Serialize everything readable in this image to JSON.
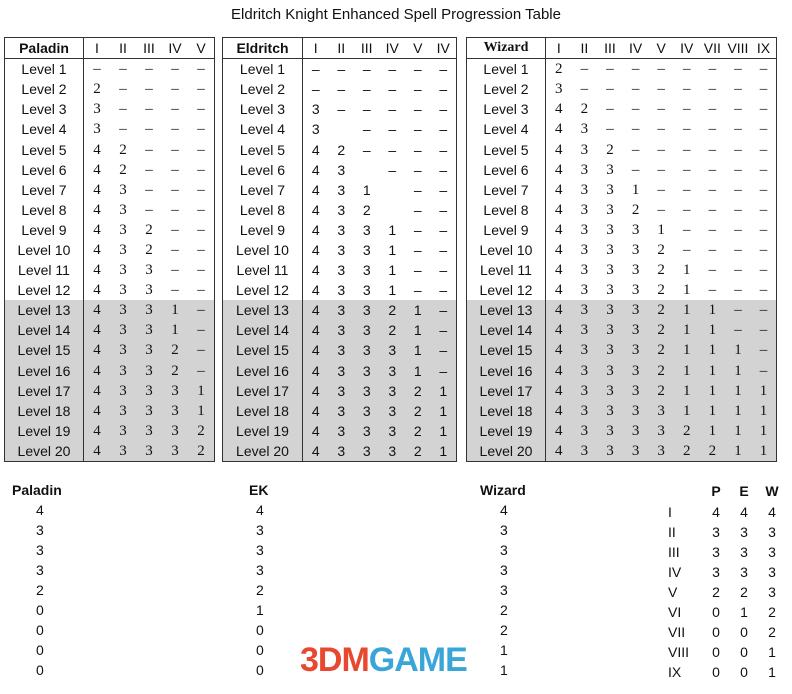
{
  "title": "Eldritch Knight Enhanced Spell Progression Table",
  "tables": [
    {
      "id": "paladin",
      "header": "Paladin",
      "serif": true,
      "columns": [
        "I",
        "II",
        "III",
        "IV",
        "V"
      ],
      "rows": [
        [
          "Level 1",
          "–",
          "–",
          "–",
          "–",
          "–"
        ],
        [
          "Level 2",
          "2",
          "–",
          "–",
          "–",
          "–"
        ],
        [
          "Level 3",
          "3",
          "–",
          "–",
          "–",
          "–"
        ],
        [
          "Level 4",
          "3",
          "–",
          "–",
          "–",
          "–"
        ],
        [
          "Level 5",
          "4",
          "2",
          "–",
          "–",
          "–"
        ],
        [
          "Level 6",
          "4",
          "2",
          "–",
          "–",
          "–"
        ],
        [
          "Level 7",
          "4",
          "3",
          "–",
          "–",
          "–"
        ],
        [
          "Level 8",
          "4",
          "3",
          "–",
          "–",
          "–"
        ],
        [
          "Level 9",
          "4",
          "3",
          "2",
          "–",
          "–"
        ],
        [
          "Level 10",
          "4",
          "3",
          "2",
          "–",
          "–"
        ],
        [
          "Level 11",
          "4",
          "3",
          "3",
          "–",
          "–"
        ],
        [
          "Level 12",
          "4",
          "3",
          "3",
          "–",
          "–"
        ],
        [
          "Level 13",
          "4",
          "3",
          "3",
          "1",
          "–"
        ],
        [
          "Level 14",
          "4",
          "3",
          "3",
          "1",
          "–"
        ],
        [
          "Level 15",
          "4",
          "3",
          "3",
          "2",
          "–"
        ],
        [
          "Level 16",
          "4",
          "3",
          "3",
          "2",
          "–"
        ],
        [
          "Level 17",
          "4",
          "3",
          "3",
          "3",
          "1"
        ],
        [
          "Level 18",
          "4",
          "3",
          "3",
          "3",
          "1"
        ],
        [
          "Level 19",
          "4",
          "3",
          "3",
          "3",
          "2"
        ],
        [
          "Level 20",
          "4",
          "3",
          "3",
          "3",
          "2"
        ]
      ]
    },
    {
      "id": "eldritch",
      "header": "Eldritch",
      "serif": false,
      "columns": [
        "I",
        "II",
        "III",
        "IV",
        "V",
        "IV"
      ],
      "rows": [
        [
          "Level 1",
          "–",
          "–",
          "–",
          "–",
          "–",
          "–"
        ],
        [
          "Level 2",
          "–",
          "–",
          "–",
          "–",
          "–",
          "–"
        ],
        [
          "Level 3",
          "3",
          "–",
          "–",
          "–",
          "–",
          "–"
        ],
        [
          "Level 4",
          "3",
          "",
          "–",
          "–",
          "–",
          "–"
        ],
        [
          "Level 5",
          "4",
          "2",
          "–",
          "–",
          "–",
          "–"
        ],
        [
          "Level 6",
          "4",
          "3",
          "",
          "–",
          "–",
          "–"
        ],
        [
          "Level 7",
          "4",
          "3",
          "1",
          "",
          "–",
          "–"
        ],
        [
          "Level 8",
          "4",
          "3",
          "2",
          "",
          "–",
          "–"
        ],
        [
          "Level 9",
          "4",
          "3",
          "3",
          "1",
          "–",
          "–"
        ],
        [
          "Level 10",
          "4",
          "3",
          "3",
          "1",
          "–",
          "–"
        ],
        [
          "Level 11",
          "4",
          "3",
          "3",
          "1",
          "–",
          "–"
        ],
        [
          "Level 12",
          "4",
          "3",
          "3",
          "1",
          "–",
          "–"
        ],
        [
          "Level 13",
          "4",
          "3",
          "3",
          "2",
          "1",
          "–"
        ],
        [
          "Level 14",
          "4",
          "3",
          "3",
          "2",
          "1",
          "–"
        ],
        [
          "Level 15",
          "4",
          "3",
          "3",
          "3",
          "1",
          "–"
        ],
        [
          "Level 16",
          "4",
          "3",
          "3",
          "3",
          "1",
          "–"
        ],
        [
          "Level 17",
          "4",
          "3",
          "3",
          "3",
          "2",
          "1"
        ],
        [
          "Level 18",
          "4",
          "3",
          "3",
          "3",
          "2",
          "1"
        ],
        [
          "Level 19",
          "4",
          "3",
          "3",
          "3",
          "2",
          "1"
        ],
        [
          "Level 20",
          "4",
          "3",
          "3",
          "3",
          "2",
          "1"
        ]
      ]
    },
    {
      "id": "wizard",
      "header": "Wizard",
      "serif": true,
      "columns": [
        "I",
        "II",
        "III",
        "IV",
        "V",
        "IV",
        "VII",
        "VIII",
        "IX"
      ],
      "rows": [
        [
          "Level 1",
          "2",
          "–",
          "–",
          "–",
          "–",
          "–",
          "–",
          "–",
          "–"
        ],
        [
          "Level 2",
          "3",
          "–",
          "–",
          "–",
          "–",
          "–",
          "–",
          "–",
          "–"
        ],
        [
          "Level 3",
          "4",
          "2",
          "–",
          "–",
          "–",
          "–",
          "–",
          "–",
          "–"
        ],
        [
          "Level 4",
          "4",
          "3",
          "–",
          "–",
          "–",
          "–",
          "–",
          "–",
          "–"
        ],
        [
          "Level 5",
          "4",
          "3",
          "2",
          "–",
          "–",
          "–",
          "–",
          "–",
          "–"
        ],
        [
          "Level 6",
          "4",
          "3",
          "3",
          "–",
          "–",
          "–",
          "–",
          "–",
          "–"
        ],
        [
          "Level 7",
          "4",
          "3",
          "3",
          "1",
          "–",
          "–",
          "–",
          "–",
          "–"
        ],
        [
          "Level 8",
          "4",
          "3",
          "3",
          "2",
          "–",
          "–",
          "–",
          "–",
          "–"
        ],
        [
          "Level 9",
          "4",
          "3",
          "3",
          "3",
          "1",
          "–",
          "–",
          "–",
          "–"
        ],
        [
          "Level 10",
          "4",
          "3",
          "3",
          "3",
          "2",
          "–",
          "–",
          "–",
          "–"
        ],
        [
          "Level 11",
          "4",
          "3",
          "3",
          "3",
          "2",
          "1",
          "–",
          "–",
          "–"
        ],
        [
          "Level 12",
          "4",
          "3",
          "3",
          "3",
          "2",
          "1",
          "–",
          "–",
          "–"
        ],
        [
          "Level 13",
          "4",
          "3",
          "3",
          "3",
          "2",
          "1",
          "1",
          "–",
          "–"
        ],
        [
          "Level 14",
          "4",
          "3",
          "3",
          "3",
          "2",
          "1",
          "1",
          "–",
          "–"
        ],
        [
          "Level 15",
          "4",
          "3",
          "3",
          "3",
          "2",
          "1",
          "1",
          "1",
          "–"
        ],
        [
          "Level 16",
          "4",
          "3",
          "3",
          "3",
          "2",
          "1",
          "1",
          "1",
          "–"
        ],
        [
          "Level 17",
          "4",
          "3",
          "3",
          "3",
          "2",
          "1",
          "1",
          "1",
          "1"
        ],
        [
          "Level 18",
          "4",
          "3",
          "3",
          "3",
          "3",
          "1",
          "1",
          "1",
          "1"
        ],
        [
          "Level 19",
          "4",
          "3",
          "3",
          "3",
          "3",
          "2",
          "1",
          "1",
          "1"
        ],
        [
          "Level 20",
          "4",
          "3",
          "3",
          "3",
          "3",
          "2",
          "2",
          "1",
          "1"
        ]
      ]
    }
  ],
  "summary": [
    {
      "header": "Paladin",
      "values": [
        "4",
        "3",
        "3",
        "3",
        "2",
        "0",
        "0",
        "0",
        "0"
      ]
    },
    {
      "header": "EK",
      "values": [
        "4",
        "3",
        "3",
        "3",
        "2",
        "1",
        "0",
        "0",
        "0"
      ]
    },
    {
      "header": "Wizard",
      "values": [
        "4",
        "3",
        "3",
        "3",
        "3",
        "2",
        "2",
        "1",
        "1"
      ]
    }
  ],
  "comparison": {
    "headers": [
      "P",
      "E",
      "W"
    ],
    "rows": [
      [
        "I",
        "4",
        "4",
        "4"
      ],
      [
        "II",
        "3",
        "3",
        "3"
      ],
      [
        "III",
        "3",
        "3",
        "3"
      ],
      [
        "IV",
        "3",
        "3",
        "3"
      ],
      [
        "V",
        "2",
        "2",
        "3"
      ],
      [
        "VI",
        "0",
        "1",
        "2"
      ],
      [
        "VII",
        "0",
        "0",
        "2"
      ],
      [
        "VIII",
        "0",
        "0",
        "1"
      ],
      [
        "IX",
        "0",
        "0",
        "1"
      ]
    ]
  },
  "watermark": "3DMGAME",
  "colors": {
    "shade": "#d3d3d3",
    "watermark_red": "#e8482f",
    "watermark_blue": "#3aa6d8"
  }
}
